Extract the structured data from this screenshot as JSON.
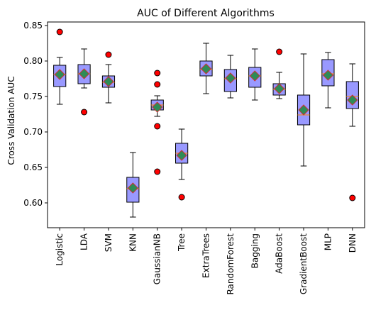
{
  "chart_data": {
    "type": "box",
    "title": "AUC of Different Algorithms",
    "xlabel": "",
    "ylabel": "Cross Validation AUC",
    "ylim": [
      0.565,
      0.855
    ],
    "yticks": [
      0.6,
      0.65,
      0.7,
      0.75,
      0.8,
      0.85
    ],
    "ytick_labels": [
      "0.60",
      "0.65",
      "0.70",
      "0.75",
      "0.80",
      "0.85"
    ],
    "grid": false,
    "colors": {
      "box_fill": "#9999ff",
      "box_edge": "#000000",
      "median": "#ff8c00",
      "mean_marker": "#2e8b57",
      "mean_edge": "#cc3333",
      "outlier": "#ff0000"
    },
    "categories": [
      "Logistic",
      "LDA",
      "SVM",
      "KNN",
      "GaussianNB",
      "Tree",
      "ExtraTrees",
      "RandomForest",
      "Bagging",
      "AdaBoost",
      "GradientBoost",
      "MLP",
      "DNN"
    ],
    "boxes": [
      {
        "whislo": 0.739,
        "q1": 0.764,
        "med": 0.781,
        "q3": 0.794,
        "whishi": 0.805,
        "mean": 0.781,
        "fliers": [
          0.841
        ]
      },
      {
        "whislo": 0.762,
        "q1": 0.768,
        "med": 0.782,
        "q3": 0.795,
        "whishi": 0.817,
        "mean": 0.782,
        "fliers": [
          0.728
        ]
      },
      {
        "whislo": 0.741,
        "q1": 0.763,
        "med": 0.77,
        "q3": 0.779,
        "whishi": 0.795,
        "mean": 0.771,
        "fliers": [
          0.809
        ]
      },
      {
        "whislo": 0.58,
        "q1": 0.601,
        "med": 0.62,
        "q3": 0.636,
        "whishi": 0.671,
        "mean": 0.621,
        "fliers": []
      },
      {
        "whislo": 0.722,
        "q1": 0.731,
        "med": 0.738,
        "q3": 0.745,
        "whishi": 0.751,
        "mean": 0.735,
        "fliers": [
          0.783,
          0.767,
          0.708,
          0.644
        ]
      },
      {
        "whislo": 0.633,
        "q1": 0.656,
        "med": 0.67,
        "q3": 0.684,
        "whishi": 0.704,
        "mean": 0.667,
        "fliers": [
          0.608
        ]
      },
      {
        "whislo": 0.754,
        "q1": 0.779,
        "med": 0.788,
        "q3": 0.8,
        "whishi": 0.825,
        "mean": 0.789,
        "fliers": []
      },
      {
        "whislo": 0.748,
        "q1": 0.757,
        "med": 0.775,
        "q3": 0.788,
        "whishi": 0.808,
        "mean": 0.776,
        "fliers": []
      },
      {
        "whislo": 0.745,
        "q1": 0.763,
        "med": 0.779,
        "q3": 0.791,
        "whishi": 0.817,
        "mean": 0.779,
        "fliers": []
      },
      {
        "whislo": 0.747,
        "q1": 0.752,
        "med": 0.76,
        "q3": 0.768,
        "whishi": 0.784,
        "mean": 0.761,
        "fliers": [
          0.813
        ]
      },
      {
        "whislo": 0.652,
        "q1": 0.71,
        "med": 0.724,
        "q3": 0.752,
        "whishi": 0.81,
        "mean": 0.731,
        "fliers": []
      },
      {
        "whislo": 0.734,
        "q1": 0.765,
        "med": 0.782,
        "q3": 0.802,
        "whishi": 0.812,
        "mean": 0.78,
        "fliers": []
      },
      {
        "whislo": 0.708,
        "q1": 0.733,
        "med": 0.75,
        "q3": 0.771,
        "whishi": 0.796,
        "mean": 0.745,
        "fliers": [
          0.607
        ]
      }
    ]
  }
}
